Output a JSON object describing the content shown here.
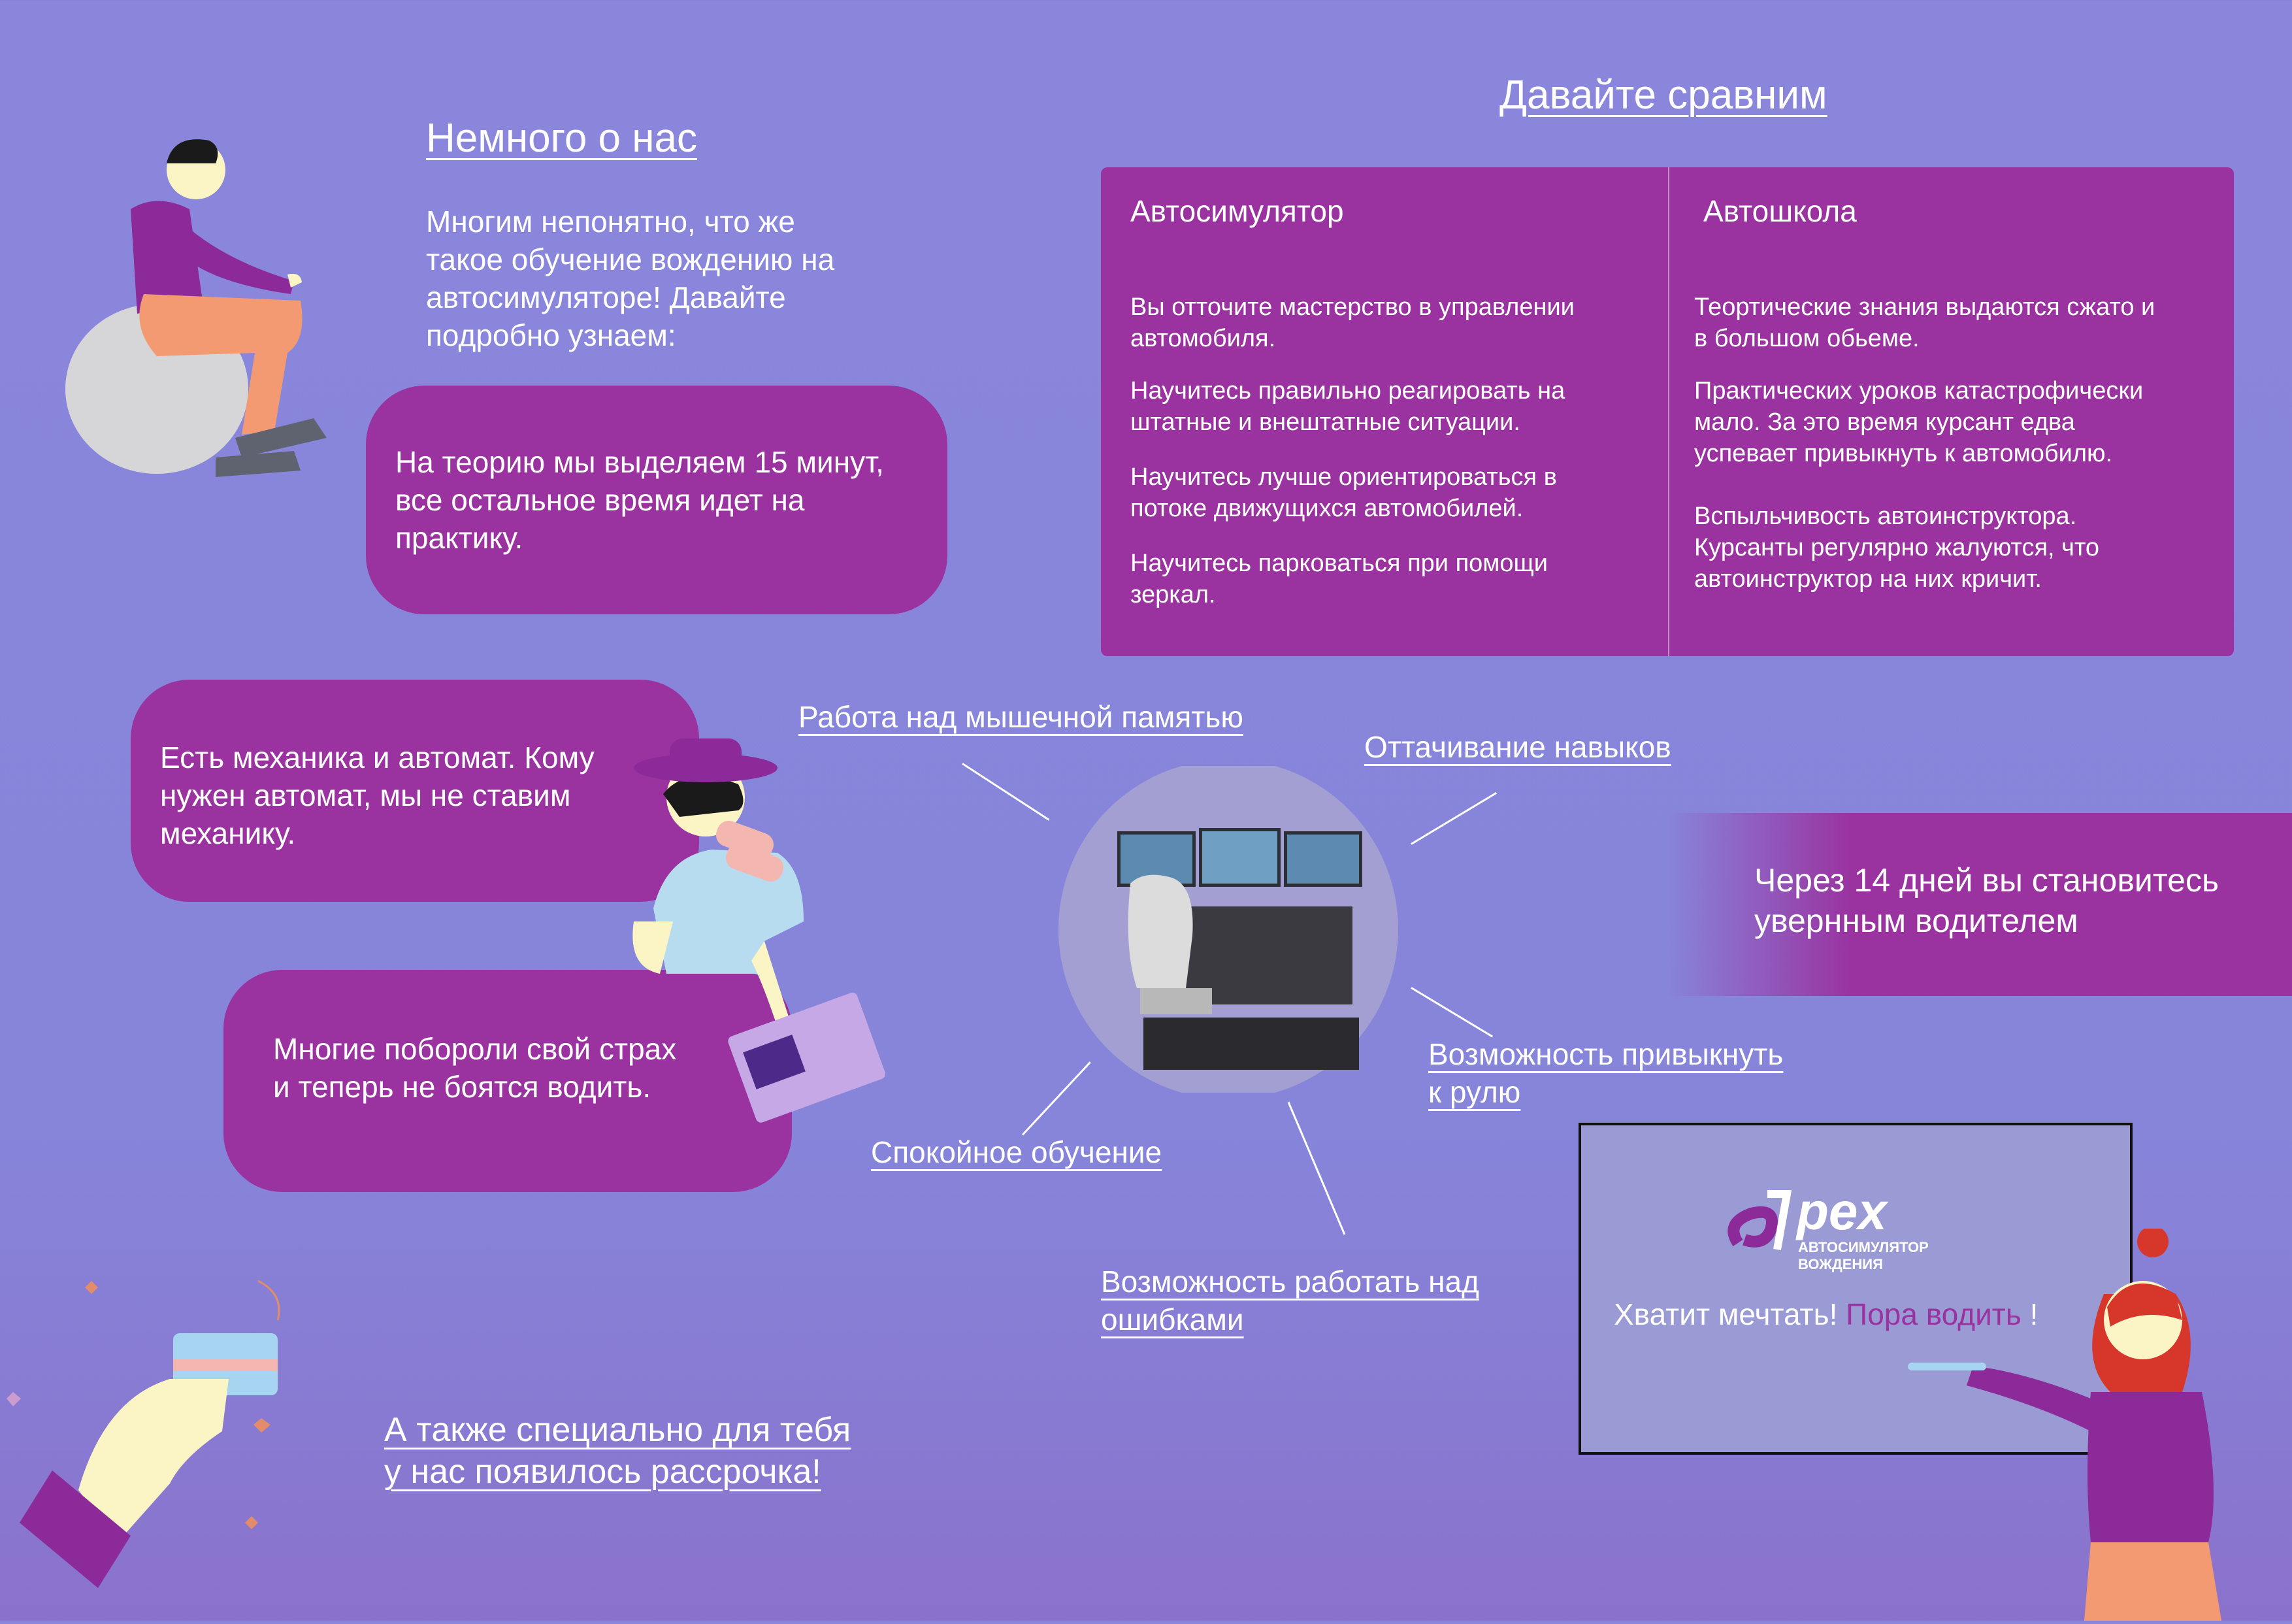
{
  "about": {
    "title": "Немного о нас",
    "intro": [
      "Многим непонятно, что же",
      "такое обучение вождению на",
      "автосимуляторе! Давайте",
      "подробно узнаем:"
    ]
  },
  "bubbles": {
    "theory": [
      "На теорию мы выделяем 15 минут,",
      "все остальное время идет на",
      "практику."
    ],
    "transmission": [
      "Есть механика и автомат. Кому",
      "нужен автомат, мы не ставим",
      "механику."
    ],
    "fear": [
      "Многие побороли свой страх",
      "и теперь не боятся водить."
    ]
  },
  "compare": {
    "title": "Давайте сравним",
    "simulator": {
      "header": "Автосимулятор",
      "items": [
        [
          "Вы отточите мастерство в управлении",
          "автомобиля."
        ],
        [
          "Научитесь правильно реагировать на",
          "штатные и внештатные ситуации."
        ],
        [
          "Научитесь лучше ориентироваться в",
          "потоке движущихся автомобилей."
        ],
        [
          "Научитесь парковаться при помощи",
          "зеркал."
        ]
      ]
    },
    "school": {
      "header": "Автошкола",
      "items": [
        [
          "Теортические знания выдаются сжато и",
          "в большом обьеме."
        ],
        [
          "Практических уроков катастрофически",
          "мало. За это время курсант едва",
          "успевает привыкнуть к автомобилю."
        ],
        [
          "Вспыльчивость автоинструктора.",
          "Курсанты регулярно жалуются, что",
          "автоинструктор на них кричит."
        ]
      ]
    }
  },
  "benefits": {
    "muscle_memory": "Работа над мышечной памятью",
    "skills": "Оттачивание навыков",
    "wheel": [
      "Возможность привыкнуть",
      "к рулю"
    ],
    "calm": "Спокойное обучение",
    "mistakes": [
      "Возможность работать над",
      "ошибками"
    ]
  },
  "banner": [
    "Через 14 дней вы становитесь",
    "увернным водителем"
  ],
  "installment": [
    "А также специально для тебя",
    "у нас появилось рассрочка!"
  ],
  "promo": {
    "logo_text": "pex",
    "logo_sub": "АВТОСИМУЛЯТОР ВОЖДЕНИЯ",
    "slogan_a": "Хватит мечтать!",
    "slogan_b": "Пора водить",
    "slogan_c": "!"
  },
  "colors": {
    "bg": "#8a86dc",
    "accent": "#9a32a0",
    "promo_bg": "#9a9ad4",
    "highlight": "#9a32a0"
  },
  "icons": [
    "sitting-man-illustration",
    "binoculars-man-illustration",
    "hand-card-illustration",
    "pointer-woman-illustration",
    "driving-simulator-photo",
    "apex-logo"
  ]
}
